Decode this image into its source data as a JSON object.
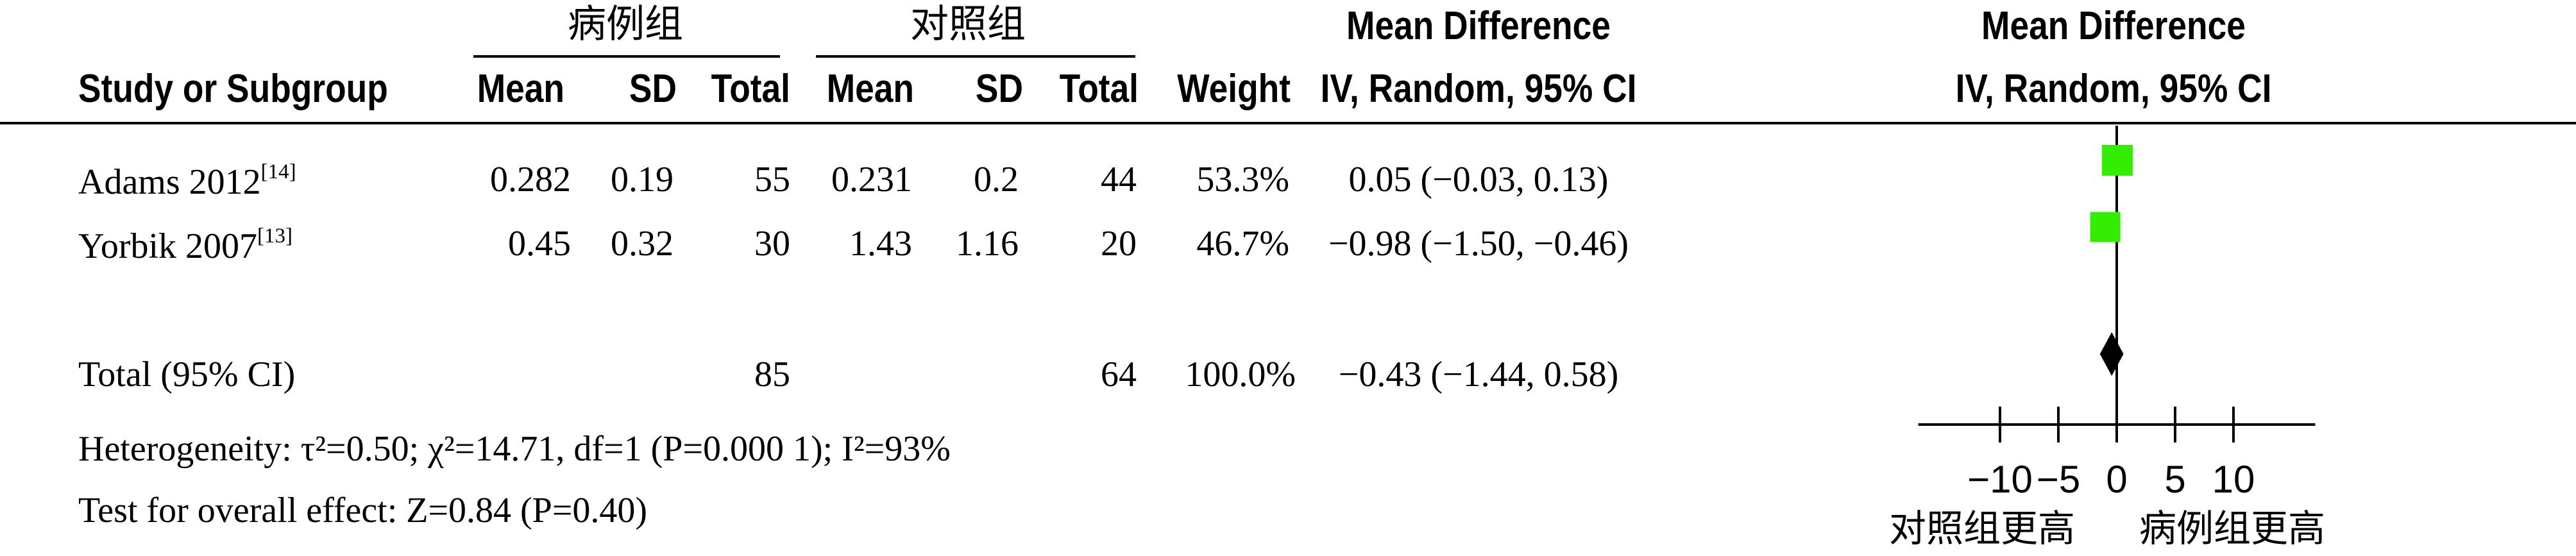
{
  "header": {
    "case_group": "病例组",
    "control_group": "对照组",
    "md_title": "Mean Difference",
    "plot_title": "Mean Difference",
    "study_col": "Study or Subgroup",
    "mean": "Mean",
    "sd": "SD",
    "total": "Total",
    "weight": "Weight",
    "md_method": "IV, Random, 95% CI",
    "plot_method": "IV, Random, 95% CI"
  },
  "studies": [
    {
      "name": "Adams 2012",
      "ref": "[14]",
      "case_mean": "0.282",
      "case_sd": "0.19",
      "case_total": "55",
      "ctrl_mean": "0.231",
      "ctrl_sd": "0.2",
      "ctrl_total": "44",
      "weight": "53.3%",
      "ci_text": "0.05 (−0.03, 0.13)"
    },
    {
      "name": "Yorbik 2007",
      "ref": "[13]",
      "case_mean": "0.45",
      "case_sd": "0.32",
      "case_total": "30",
      "ctrl_mean": "1.43",
      "ctrl_sd": "1.16",
      "ctrl_total": "20",
      "weight": "46.7%",
      "ci_text": "−0.98 (−1.50, −0.46)"
    }
  ],
  "total_row": {
    "label": "Total (95% CI)",
    "case_total": "85",
    "ctrl_total": "64",
    "weight": "100.0%",
    "ci_text": "−0.43 (−1.44, 0.58)"
  },
  "footer": {
    "heterogeneity": "Heterogeneity: τ²=0.50; χ²=14.71, df=1 (P=0.000 1); I²=93%",
    "overall": "Test for overall effect: Z=0.84 (P=0.40)"
  },
  "axis": {
    "favors_left": "对照组更高",
    "favors_right": "病例组更高"
  },
  "chart_data": {
    "type": "forest",
    "x_range": [
      -17,
      17
    ],
    "ticks": [
      -10,
      -5,
      0,
      5,
      10
    ],
    "study_color": "#33ee00",
    "pooled_color": "#000000",
    "studies": [
      {
        "name": "Adams 2012",
        "md": 0.05,
        "lower": -0.03,
        "upper": 0.13,
        "weight": 53.3
      },
      {
        "name": "Yorbik 2007",
        "md": -0.98,
        "lower": -1.5,
        "upper": -0.46,
        "weight": 46.7
      }
    ],
    "pooled": {
      "md": -0.43,
      "lower": -1.44,
      "upper": 0.58
    }
  }
}
